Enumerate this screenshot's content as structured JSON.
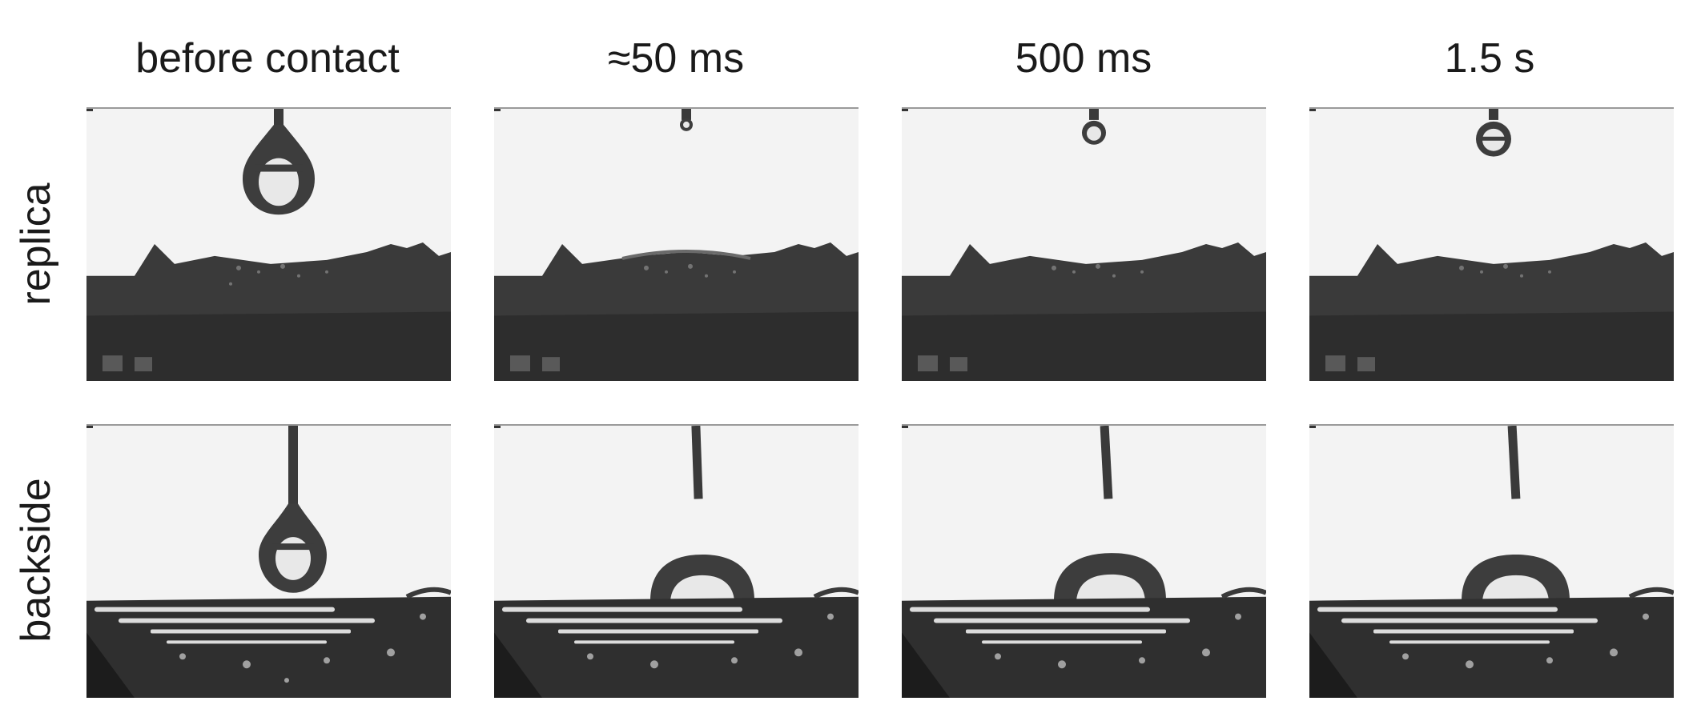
{
  "columns": [
    {
      "label": "before contact"
    },
    {
      "label": "≈50 ms"
    },
    {
      "label": "500 ms"
    },
    {
      "label": "1.5 s"
    }
  ],
  "rows": [
    {
      "label": "replica"
    },
    {
      "label": "backside"
    }
  ]
}
